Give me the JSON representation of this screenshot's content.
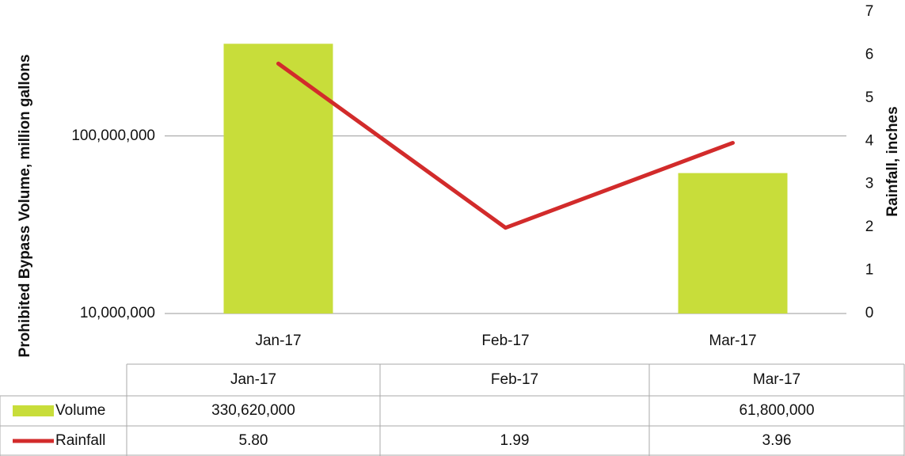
{
  "chart_data": {
    "type": "bar_line",
    "categories": [
      "Jan-17",
      "Feb-17",
      "Mar-17"
    ],
    "series": [
      {
        "name": "Volume",
        "color": "#c8dd3a",
        "type": "bar",
        "values": [
          330620000,
          null,
          61800000
        ],
        "value_labels": [
          "330,620,000",
          null,
          "61,800,000"
        ]
      },
      {
        "name": "Rainfall",
        "color": "#d22b2b",
        "type": "line",
        "axis": "y2",
        "values": [
          5.8,
          1.99,
          3.96
        ],
        "value_labels": [
          "5.80",
          "1.99",
          "3.96"
        ]
      }
    ],
    "y_label": "Prohibited Bypass Volume, million gallons",
    "y2_label": "Rainfall, inches",
    "log_scale": true,
    "ylim": [
      10000000,
      500000000
    ],
    "yticks": [
      {
        "value": 10000000,
        "label": "10,000,000"
      },
      {
        "value": 100000000,
        "label": "100,000,000"
      }
    ],
    "y2lim": [
      0,
      7
    ],
    "y2ticks": [
      0,
      1,
      2,
      3,
      4,
      5,
      6,
      7
    ],
    "grid": true
  }
}
